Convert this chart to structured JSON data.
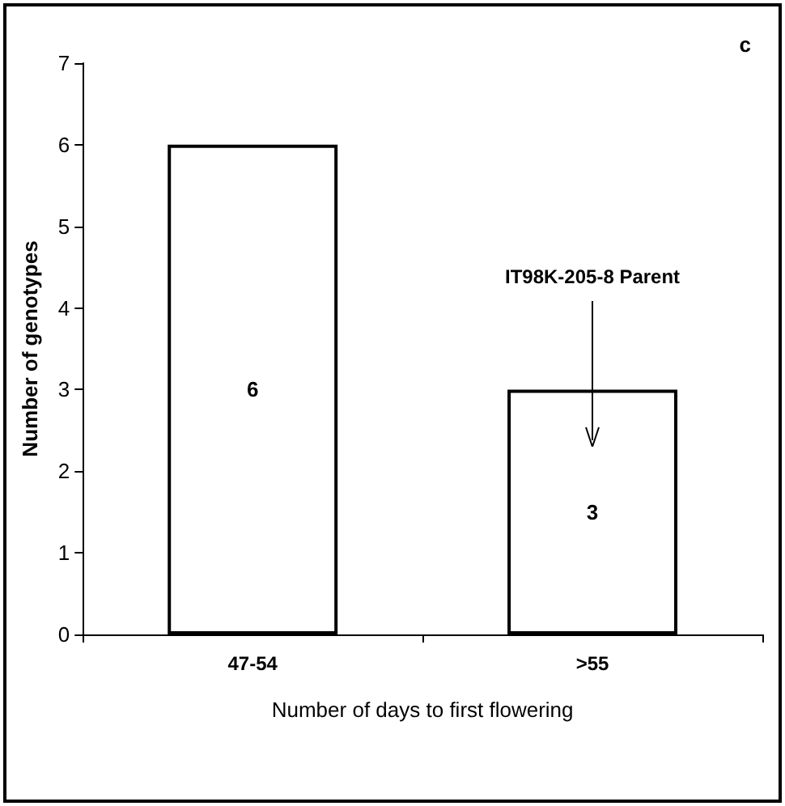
{
  "chart_data": {
    "type": "bar",
    "title": "c",
    "xlabel": "Number of days to first flowering",
    "ylabel": "Number of genotypes",
    "categories": [
      "47-54",
      ">55"
    ],
    "values": [
      6,
      3
    ],
    "color": "#ffffff",
    "ylim": [
      0,
      7
    ],
    "yticks": [
      0,
      1,
      2,
      3,
      4,
      5,
      6,
      7
    ],
    "grid": false,
    "data_labels": true,
    "annotations": [
      "IT98K-205-8 Parent"
    ]
  }
}
